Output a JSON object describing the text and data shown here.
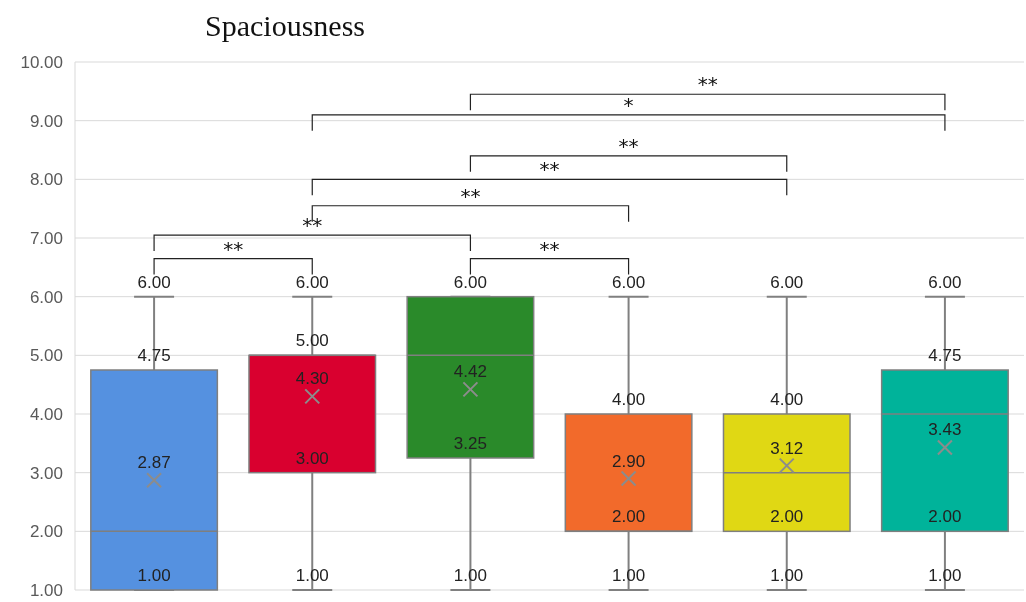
{
  "chart_data": {
    "type": "box",
    "title": "Spaciousness",
    "categories": [
      null,
      null,
      null,
      null,
      null,
      null
    ],
    "series": [
      {
        "colors": [
          "#5591e0",
          "#d9002f",
          "#2a8a2a",
          "#f26a2b",
          "#e0d814",
          "#00b39a"
        ],
        "boxes": [
          {
            "low": 1,
            "q1": 1,
            "median": 2,
            "q3": 4.75,
            "high": 6,
            "mean": 2.87
          },
          {
            "low": 1,
            "q1": 3,
            "median": 5,
            "q3": 5,
            "high": 6,
            "mean": 4.3
          },
          {
            "low": 1,
            "q1": 3.25,
            "median": 5,
            "q3": 6,
            "high": 6,
            "mean": 4.42
          },
          {
            "low": 1,
            "q1": 2,
            "median": 2,
            "q3": 4,
            "high": 6,
            "mean": 2.9
          },
          {
            "low": 1,
            "q1": 2,
            "median": 3,
            "q3": 4,
            "high": 6,
            "mean": 3.12
          },
          {
            "low": 1,
            "q1": 2,
            "median": 4,
            "q3": 4.75,
            "high": 6,
            "mean": 3.43
          }
        ]
      }
    ],
    "ylim": [
      1,
      10
    ],
    "yticks": [
      {
        "value": 1,
        "label": "1.00"
      },
      {
        "value": 2,
        "label": "2.00"
      },
      {
        "value": 3,
        "label": "3.00"
      },
      {
        "value": 4,
        "label": "4.00"
      },
      {
        "value": 5,
        "label": "5.00"
      },
      {
        "value": 6,
        "label": "6.00"
      },
      {
        "value": 7,
        "label": "7.00"
      },
      {
        "value": 8,
        "label": "8.00"
      },
      {
        "value": 9,
        "label": "9.00"
      },
      {
        "value": 10,
        "label": "10.00"
      }
    ],
    "grid": "y",
    "annotations": [
      "**",
      "**",
      "**",
      "**",
      "**",
      "**",
      "*",
      "**",
      "2.87",
      "4.30",
      "4.42",
      "2.90",
      "3.12",
      "3.43",
      {
        "text": "6.00",
        "y": 6
      },
      {
        "text": "4.75",
        "y": 4.75
      },
      {
        "text": "1.00",
        "y": 1
      },
      {
        "text": "6.00",
        "y": 6
      },
      {
        "text": "5.00",
        "y": 5
      },
      {
        "text": "3.00",
        "y": 3
      },
      {
        "text": "1.00",
        "y": 1
      },
      {
        "text": "6.00",
        "y": 6
      },
      {
        "text": "3.25",
        "y": 3.25
      },
      {
        "text": "1.00",
        "y": 1
      },
      {
        "text": "6.00",
        "y": 6
      },
      {
        "text": "4.00",
        "y": 4
      },
      {
        "text": "2.00",
        "y": 2
      },
      {
        "text": "1.00",
        "y": 1
      },
      {
        "text": "6.00",
        "y": 6
      },
      {
        "text": "4.00",
        "y": 4
      },
      {
        "text": "2.00",
        "y": 2
      },
      {
        "text": "1.00",
        "y": 1
      },
      {
        "text": "6.00",
        "y": 6
      },
      {
        "text": "4.75",
        "y": 4.75
      },
      {
        "text": "2.00",
        "y": 2
      },
      {
        "text": "1.00",
        "y": 1
      }
    ]
  }
}
